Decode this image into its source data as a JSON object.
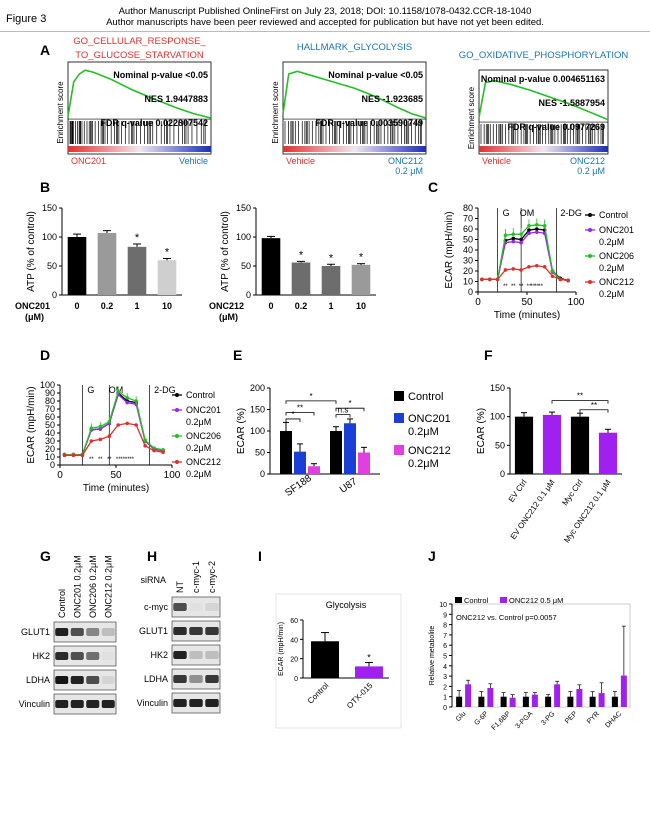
{
  "header": {
    "figure_label": "Figure 3",
    "line1": "Author Manuscript Published OnlineFirst on July 23, 2018; DOI: 10.1158/1078-0432.CCR-18-1040",
    "line2": "Author manuscripts have been peer reviewed and accepted for publication but have not yet been edited."
  },
  "panels": {
    "A": "A",
    "B": "B",
    "C": "C",
    "D": "D",
    "E": "E",
    "F": "F",
    "G": "G",
    "H": "H",
    "I": "I",
    "J": "J"
  },
  "colors": {
    "green": "#22c022",
    "red": "#e0302e",
    "blue": "#1a3fd6",
    "magenta": "#e040e0",
    "purple": "#a020f0",
    "black": "#000000"
  },
  "gsea": [
    {
      "title1": "GO_CELLULAR_RESPONSE_",
      "title2": "TO_GLUCOSE_STARVATION",
      "title_color": "#e0302e",
      "stats": [
        "Nominal p-value <0.05",
        "NES 1.9447883",
        "FDR q-value 0.022807542"
      ],
      "left": "ONC201",
      "right": "Vehicle",
      "right2": "",
      "ylabel": "Enrichment score"
    },
    {
      "title1": "HALLMARK_GLYCOLYSIS",
      "title2": "",
      "title_color": "#1b73b5",
      "stats": [
        "Nominal p-value <0.05",
        "NES -1.923685",
        "FDR q-value 0.003590749"
      ],
      "left": "Vehicle",
      "right": "ONC212",
      "right2": "0.2 μM",
      "ylabel": "Enrichment score"
    },
    {
      "title1": "GO_OXIDATIVE_PHOSPHORYLATION",
      "title2": "",
      "title_color": "#1b73b5",
      "stats": [
        "Nominal p-value 0.004651163",
        "NES -1.5887954",
        "FDR q-value 0.0977269"
      ],
      "left": "Vehicle",
      "right": "ONC212",
      "right2": "0.2 μM",
      "ylabel": "Enrichment score"
    }
  ],
  "chart_data": [
    {
      "panel": "B-left",
      "type": "bar",
      "ylabel": "ATP (% of control)",
      "xlabel_line1": "ONC201",
      "xlabel_line2": "(μM)",
      "categories": [
        "0",
        "0.2",
        "1",
        "10"
      ],
      "values": [
        100,
        107,
        83,
        60
      ],
      "errors": [
        5,
        4,
        5,
        3
      ],
      "stars": [
        "",
        "",
        "*",
        "*"
      ],
      "ylim": [
        0,
        150
      ],
      "yticks": [
        "0",
        "50",
        "100",
        "150"
      ]
    },
    {
      "panel": "B-right",
      "type": "bar",
      "ylabel": "ATP (% of control)",
      "xlabel_line1": "ONC212",
      "xlabel_line2": "(μM)",
      "categories": [
        "0",
        "0.2",
        "1",
        "10"
      ],
      "values": [
        98,
        56,
        50,
        52
      ],
      "errors": [
        3,
        2,
        3,
        2
      ],
      "stars": [
        "",
        "*",
        "*",
        "*"
      ],
      "ylim": [
        0,
        150
      ],
      "yticks": [
        "0",
        "50",
        "100",
        "150"
      ]
    },
    {
      "panel": "C",
      "type": "line",
      "ylabel": "ECAR (mpH/min)",
      "xlabel": "Time (minutes)",
      "xlim": [
        0,
        100
      ],
      "ylim": [
        0,
        80
      ],
      "xticks": [
        "0",
        "50",
        "100"
      ],
      "yticks": [
        "0",
        "10",
        "20",
        "30",
        "40",
        "50",
        "60",
        "70",
        "80"
      ],
      "markers": [
        "G",
        "OM",
        "2-DG"
      ],
      "legend": [
        "Control",
        "ONC201 0.2μM",
        "ONC206 0.2μM",
        "ONC212 0.2μM"
      ],
      "x": [
        4,
        12,
        20,
        28,
        36,
        44,
        52,
        60,
        68,
        76,
        84,
        92
      ],
      "series": [
        {
          "name": "Control",
          "values": [
            12,
            12,
            12,
            49,
            51,
            50,
            59,
            60,
            59,
            20,
            13,
            11
          ]
        },
        {
          "name": "ONC201 0.2μM",
          "values": [
            12,
            12,
            12,
            47,
            48,
            47,
            56,
            57,
            56,
            19,
            12,
            11
          ]
        },
        {
          "name": "ONC206 0.2μM",
          "values": [
            12,
            12,
            12,
            54,
            55,
            55,
            63,
            64,
            63,
            20,
            12,
            11
          ]
        },
        {
          "name": "ONC212 0.2μM",
          "values": [
            12,
            12,
            12,
            21,
            22,
            21,
            24,
            25,
            24,
            15,
            12,
            11
          ]
        }
      ]
    },
    {
      "panel": "D",
      "type": "line",
      "ylabel": "ECAR (mpH/min)",
      "xlabel": "Time (minutes)",
      "xlim": [
        0,
        100
      ],
      "ylim": [
        0,
        100
      ],
      "xticks": [
        "0",
        "50",
        "100"
      ],
      "yticks": [
        "0",
        "10",
        "20",
        "30",
        "40",
        "50",
        "60",
        "70",
        "80",
        "90",
        "100"
      ],
      "markers": [
        "G",
        "OM",
        "2-DG"
      ],
      "legend": [
        "Control",
        "ONC201 0.2μM",
        "ONC206 0.2μM",
        "ONC212 0.2μM"
      ],
      "x": [
        4,
        12,
        20,
        28,
        36,
        44,
        52,
        60,
        68,
        76,
        84,
        92
      ],
      "series": [
        {
          "name": "Control",
          "values": [
            13,
            13,
            13,
            44,
            45,
            52,
            90,
            80,
            78,
            30,
            20,
            18
          ]
        },
        {
          "name": "ONC201 0.2μM",
          "values": [
            13,
            13,
            13,
            44,
            45,
            52,
            88,
            78,
            76,
            30,
            20,
            18
          ]
        },
        {
          "name": "ONC206 0.2μM",
          "values": [
            13,
            13,
            13,
            46,
            48,
            54,
            92,
            84,
            80,
            31,
            21,
            19
          ]
        },
        {
          "name": "ONC212 0.2μM",
          "values": [
            12,
            12,
            12,
            30,
            32,
            36,
            50,
            52,
            50,
            24,
            18,
            16
          ]
        }
      ]
    },
    {
      "panel": "E",
      "type": "bar",
      "ylabel": "ECAR (%)",
      "categories": [
        "SF188",
        "U87"
      ],
      "ylim": [
        0,
        200
      ],
      "yticks": [
        "0",
        "50",
        "100",
        "150",
        "200"
      ],
      "series": [
        {
          "name": "Control",
          "values": [
            100,
            100
          ],
          "errors": [
            20,
            10
          ]
        },
        {
          "name": "ONC201 0.2μM",
          "values": [
            52,
            118
          ],
          "errors": [
            18,
            10
          ]
        },
        {
          "name": "ONC212 0.2μM",
          "values": [
            18,
            50
          ],
          "errors": [
            6,
            12
          ]
        }
      ],
      "sig": [
        "*",
        "**",
        "*",
        "n.s",
        "*"
      ]
    },
    {
      "panel": "F",
      "type": "bar",
      "ylabel": "ECAR (%)",
      "categories": [
        "EV Ctrl",
        "EV ONC212 0.1 μM",
        "Myc Ctrl",
        "Myc ONC212 0.1 μM"
      ],
      "values": [
        100,
        103,
        100,
        72
      ],
      "errors": [
        7,
        5,
        6,
        6
      ],
      "ylim": [
        0,
        150
      ],
      "yticks": [
        "0",
        "50",
        "100",
        "150"
      ],
      "sig": [
        "**",
        "**"
      ]
    },
    {
      "panel": "I",
      "type": "bar",
      "title": "Glycolysis",
      "ylabel": "ECAR (mpH/min)",
      "categories": [
        "Control",
        "OTX-015"
      ],
      "values": [
        38,
        12
      ],
      "errors": [
        9,
        4
      ],
      "ylim": [
        0,
        60
      ],
      "yticks": [
        "0",
        "20",
        "40",
        "60"
      ],
      "stars": [
        "",
        "*"
      ]
    },
    {
      "panel": "J",
      "type": "bar",
      "ylabel": "Relative metabolite",
      "annotation": "ONC212 vs. Control p=0.0057",
      "categories": [
        "Glu",
        "G-6P",
        "F1,6BP",
        "3-PGA",
        "3-PG",
        "PEP",
        "PYR",
        "DHAC"
      ],
      "ylim": [
        0,
        10
      ],
      "yticks": [
        "0",
        "1",
        "2",
        "3",
        "4",
        "5",
        "6",
        "7",
        "8",
        "9",
        "10"
      ],
      "series": [
        {
          "name": "Control",
          "values": [
            1,
            1,
            1,
            1,
            1,
            1,
            1,
            1
          ],
          "errors": [
            0.6,
            0.5,
            0.4,
            0.4,
            0.2,
            0.5,
            0.5,
            0.5
          ]
        },
        {
          "name": "ONC212 0.5 μM",
          "values": [
            2.2,
            1.85,
            0.9,
            1.2,
            2.2,
            1.75,
            1.35,
            3.05
          ],
          "errors": [
            0.4,
            0.4,
            0.3,
            0.2,
            0.3,
            0.4,
            1.0,
            4.8
          ]
        }
      ]
    }
  ],
  "westernG": {
    "cols": [
      "Control",
      "ONC201 0.2μM",
      "ONC206 0.2μM",
      "ONC212 0.2μM"
    ],
    "rows": [
      "GLUT1",
      "HK2",
      "LDHA",
      "Vinculin"
    ],
    "intensity": [
      [
        0.9,
        0.7,
        0.45,
        0.2
      ],
      [
        0.85,
        0.7,
        0.55,
        0.05
      ],
      [
        0.95,
        0.9,
        0.7,
        0.1
      ],
      [
        0.9,
        0.9,
        0.9,
        0.9
      ]
    ]
  },
  "westernH": {
    "header": "siRNA",
    "cols": [
      "NT",
      "c-myc-1",
      "c-myc-2"
    ],
    "rows": [
      "c-myc",
      "GLUT1",
      "HK2",
      "LDHA",
      "Vinculin"
    ],
    "intensity": [
      [
        0.7,
        0.05,
        0.1
      ],
      [
        0.85,
        0.8,
        0.8
      ],
      [
        0.9,
        0.2,
        0.2
      ],
      [
        0.8,
        0.4,
        0.8
      ],
      [
        0.9,
        0.9,
        0.9
      ]
    ]
  }
}
